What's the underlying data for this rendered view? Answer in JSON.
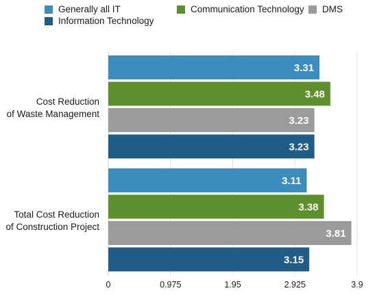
{
  "chart_data": {
    "type": "bar",
    "orientation": "horizontal",
    "categories": [
      [
        "Cost Reduction",
        "of Waste Management"
      ],
      [
        "Total Cost Reduction",
        "of Construction Project"
      ]
    ],
    "series": [
      {
        "name": "Generally all IT",
        "color": "#3b8dbd",
        "values": [
          3.31,
          3.11
        ]
      },
      {
        "name": "Communication Technology",
        "color": "#5d8f2c",
        "values": [
          3.48,
          3.38
        ]
      },
      {
        "name": "DMS",
        "color": "#9b9b9b",
        "values": [
          3.23,
          3.81
        ]
      },
      {
        "name": "Information Technology",
        "color": "#1f5d86",
        "values": [
          3.23,
          3.15
        ]
      }
    ],
    "xlim": [
      0,
      3.9
    ],
    "x_ticks": [
      0,
      0.975,
      1.95,
      2.925,
      3.9
    ],
    "x_tick_labels": [
      "0",
      "0.975",
      "1.95",
      "2.925",
      "3.9"
    ],
    "grid": "vertical",
    "legend": "top"
  }
}
